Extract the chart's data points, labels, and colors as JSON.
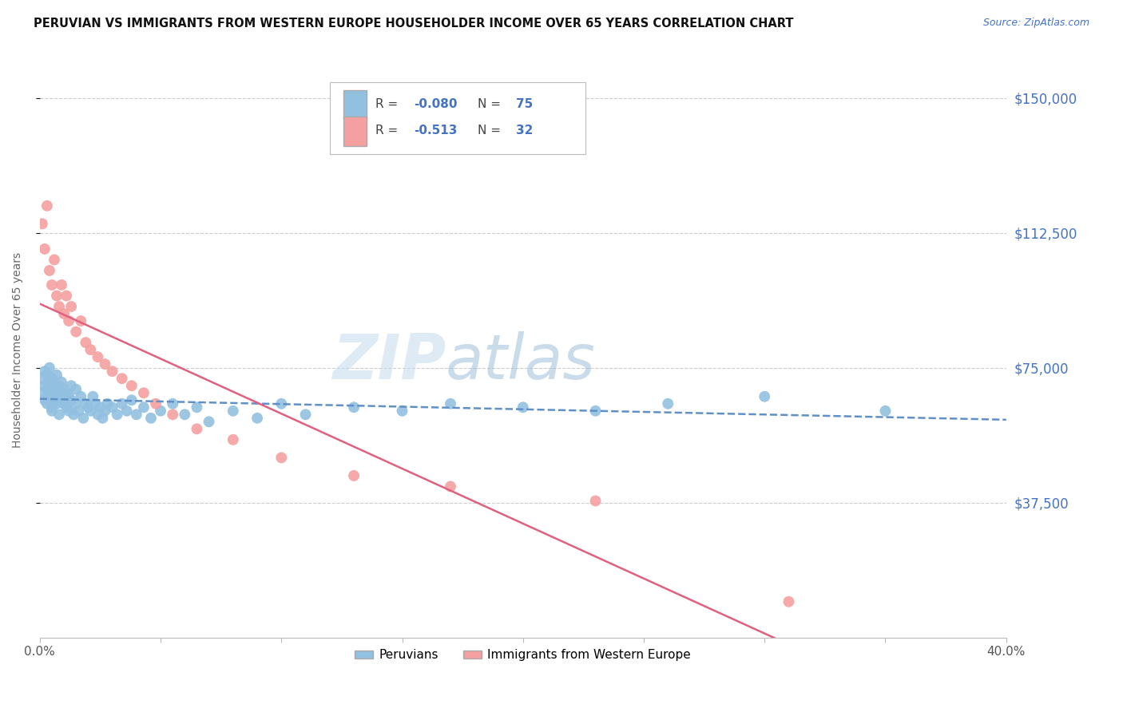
{
  "title": "PERUVIAN VS IMMIGRANTS FROM WESTERN EUROPE HOUSEHOLDER INCOME OVER 65 YEARS CORRELATION CHART",
  "source": "Source: ZipAtlas.com",
  "ylabel": "Householder Income Over 65 years",
  "ytick_labels": [
    "$150,000",
    "$112,500",
    "$75,000",
    "$37,500"
  ],
  "ytick_values": [
    150000,
    112500,
    75000,
    37500
  ],
  "ymin": 0,
  "ymax": 160000,
  "xmin": 0.0,
  "xmax": 0.4,
  "color_blue": "#92c0e0",
  "color_pink": "#f4a0a0",
  "color_blue_line": "#6090c8",
  "color_pink_line": "#e06080",
  "color_label_blue": "#4472c4",
  "background": "#ffffff",
  "grid_color": "#cccccc",
  "peruvian_x": [
    0.001,
    0.001,
    0.002,
    0.002,
    0.002,
    0.003,
    0.003,
    0.003,
    0.004,
    0.004,
    0.004,
    0.005,
    0.005,
    0.005,
    0.005,
    0.006,
    0.006,
    0.006,
    0.007,
    0.007,
    0.007,
    0.008,
    0.008,
    0.008,
    0.009,
    0.009,
    0.01,
    0.01,
    0.011,
    0.011,
    0.012,
    0.012,
    0.013,
    0.013,
    0.014,
    0.015,
    0.015,
    0.016,
    0.017,
    0.018,
    0.019,
    0.02,
    0.021,
    0.022,
    0.023,
    0.024,
    0.025,
    0.026,
    0.027,
    0.028,
    0.03,
    0.032,
    0.034,
    0.036,
    0.038,
    0.04,
    0.043,
    0.046,
    0.05,
    0.055,
    0.06,
    0.065,
    0.07,
    0.08,
    0.09,
    0.1,
    0.11,
    0.13,
    0.15,
    0.17,
    0.2,
    0.23,
    0.26,
    0.3,
    0.35
  ],
  "peruvian_y": [
    68000,
    72000,
    70000,
    74000,
    66000,
    69000,
    73000,
    65000,
    67000,
    71000,
    75000,
    64000,
    68000,
    72000,
    63000,
    66000,
    70000,
    68000,
    65000,
    69000,
    73000,
    62000,
    66000,
    70000,
    67000,
    71000,
    65000,
    69000,
    64000,
    68000,
    63000,
    67000,
    66000,
    70000,
    62000,
    65000,
    69000,
    63000,
    67000,
    61000,
    65000,
    64000,
    63000,
    67000,
    65000,
    62000,
    64000,
    61000,
    63000,
    65000,
    64000,
    62000,
    65000,
    63000,
    66000,
    62000,
    64000,
    61000,
    63000,
    65000,
    62000,
    64000,
    60000,
    63000,
    61000,
    65000,
    62000,
    64000,
    63000,
    65000,
    64000,
    63000,
    65000,
    67000,
    63000
  ],
  "western_x": [
    0.001,
    0.002,
    0.003,
    0.004,
    0.005,
    0.006,
    0.007,
    0.008,
    0.009,
    0.01,
    0.011,
    0.012,
    0.013,
    0.015,
    0.017,
    0.019,
    0.021,
    0.024,
    0.027,
    0.03,
    0.034,
    0.038,
    0.043,
    0.048,
    0.055,
    0.065,
    0.08,
    0.1,
    0.13,
    0.17,
    0.23,
    0.31
  ],
  "western_y": [
    115000,
    108000,
    120000,
    102000,
    98000,
    105000,
    95000,
    92000,
    98000,
    90000,
    95000,
    88000,
    92000,
    85000,
    88000,
    82000,
    80000,
    78000,
    76000,
    74000,
    72000,
    70000,
    68000,
    65000,
    62000,
    58000,
    55000,
    50000,
    45000,
    42000,
    38000,
    10000
  ]
}
